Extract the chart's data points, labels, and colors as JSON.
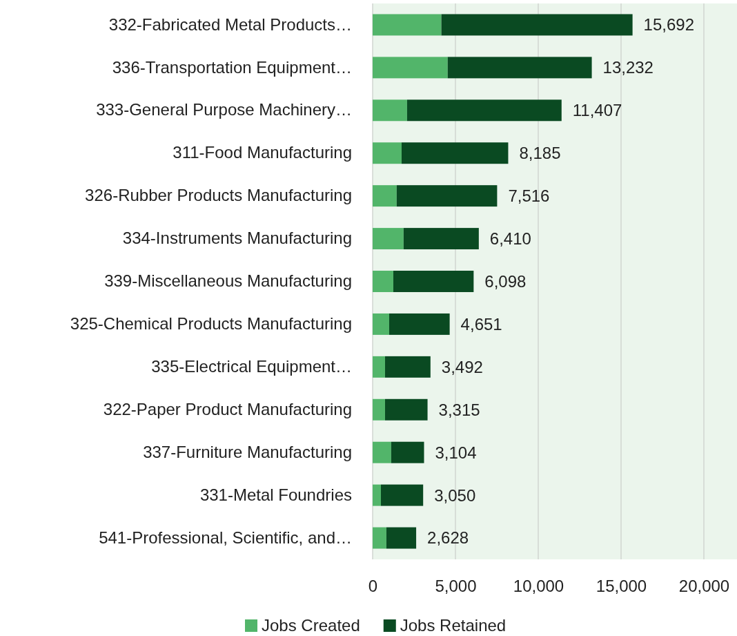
{
  "chart_data": {
    "type": "bar",
    "orientation": "horizontal",
    "stacked": true,
    "categories": [
      "332-Fabricated Metal Products…",
      "336-Transportation Equipment…",
      "333-General Purpose Machinery…",
      "311-Food Manufacturing",
      "326-Rubber Products Manufacturing",
      "334-Instruments Manufacturing",
      "339-Miscellaneous Manufacturing",
      "325-Chemical Products Manufacturing",
      "335-Electrical Equipment…",
      "322-Paper Product Manufacturing",
      "337-Furniture Manufacturing",
      "331-Metal Foundries",
      "541-Professional, Scientific, and…"
    ],
    "series": [
      {
        "name": "Jobs Created",
        "color": "#52b56a",
        "values": [
          4150,
          4530,
          2080,
          1750,
          1450,
          1870,
          1250,
          1000,
          750,
          750,
          1120,
          500,
          830
        ]
      },
      {
        "name": "Jobs Retained",
        "color": "#0a4a22",
        "values": [
          11542,
          8702,
          9327,
          6435,
          6066,
          4540,
          4848,
          3651,
          2742,
          2565,
          1984,
          2550,
          1798
        ]
      }
    ],
    "totals": [
      "15,692",
      "13,232",
      "11,407",
      "8,185",
      "7,516",
      "6,410",
      "6,098",
      "4,651",
      "3,492",
      "3,315",
      "3,104",
      "3,050",
      "2,628"
    ],
    "xlim": [
      0,
      22000
    ],
    "xticks": [
      0,
      {
        "value": 5000,
        "label": "5,000"
      },
      {
        "value": 10000,
        "label": "10,000"
      },
      {
        "value": 15000,
        "label": "15,000"
      },
      {
        "value": 20000,
        "label": "20,000"
      }
    ],
    "grid": "x",
    "legend": "bottom"
  }
}
